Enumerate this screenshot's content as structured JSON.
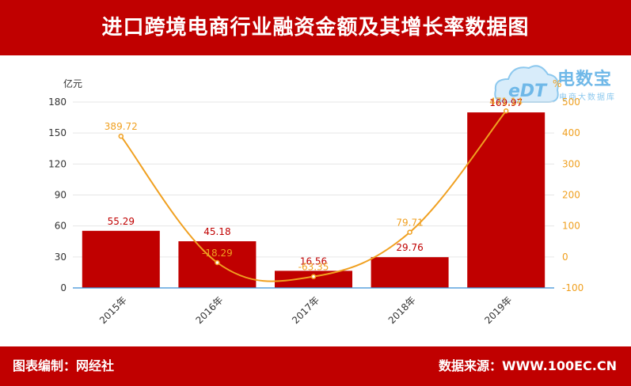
{
  "header": {
    "title": "进口跨境电商行业融资金额及其增长率数据图"
  },
  "footer": {
    "left": "图表编制：网经社",
    "right": "数据来源：WWW.100EC.CN"
  },
  "watermark": {
    "logo_text": "eDT",
    "brand": "电数宝",
    "sub": "电商大数据库"
  },
  "colors": {
    "bar": "#c00000",
    "line": "#f0a020",
    "header_bg": "#c00000"
  },
  "chart_data": {
    "type": "bar",
    "title": "进口跨境电商行业融资金额及其增长率数据图",
    "categories": [
      "2015年",
      "2016年",
      "2017年",
      "2018年",
      "2019年"
    ],
    "series": [
      {
        "values": [
          55.29,
          45.18,
          16.56,
          29.76,
          169.97
        ],
        "axis": "left",
        "kind": "bar"
      },
      {
        "values": [
          389.72,
          -18.29,
          -63.35,
          79.71,
          471.14
        ],
        "axis": "right",
        "kind": "line"
      }
    ],
    "ylabel": "亿元",
    "y2label": "%",
    "ylim": [
      0,
      180
    ],
    "y2lim": [
      -100,
      500
    ],
    "yticks": [
      0,
      30,
      60,
      90,
      120,
      150,
      180
    ],
    "y2ticks": [
      -100,
      0,
      100,
      200,
      300,
      400,
      500
    ],
    "bar_labels": [
      "55.29",
      "45.18",
      "16.56",
      "29.76",
      "169.97"
    ],
    "line_labels": [
      "389.72",
      "-18.29",
      "-63.35",
      "79.71",
      "471.14"
    ],
    "grid": true
  }
}
